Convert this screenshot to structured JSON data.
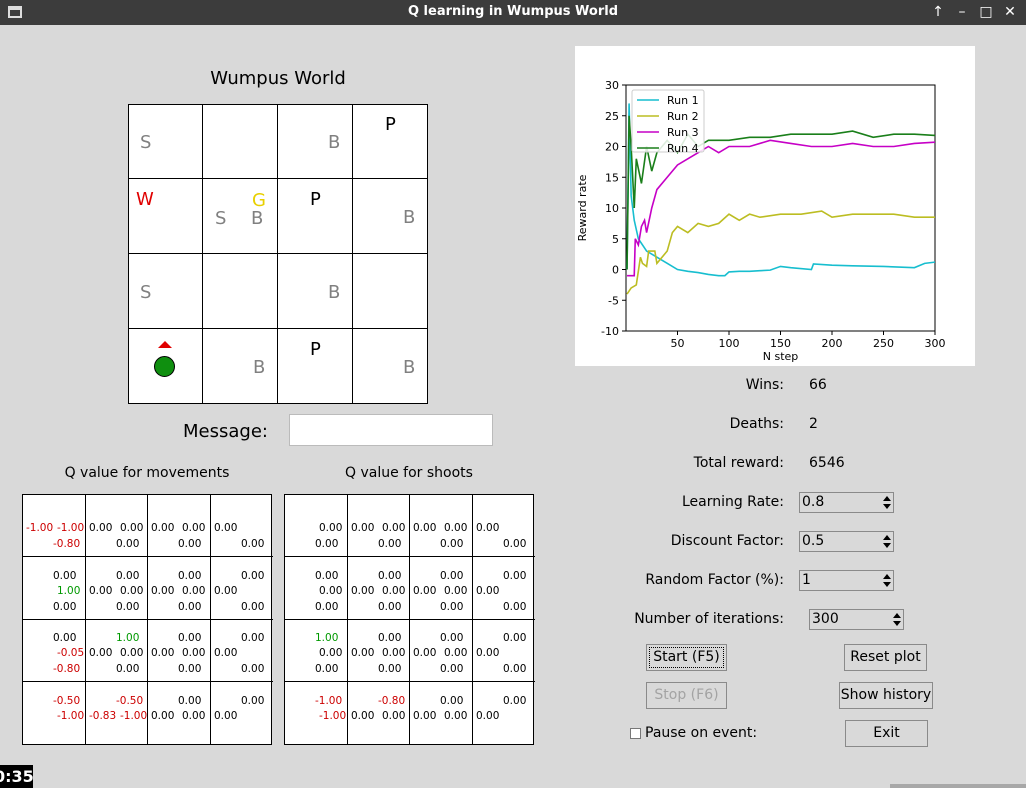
{
  "window": {
    "title": "Q learning in Wumpus World"
  },
  "world": {
    "title": "Wumpus World",
    "cells": [
      {
        "row": 0,
        "col": 0,
        "labels": [
          {
            "t": "S",
            "c": "gray",
            "p": "ml"
          }
        ]
      },
      {
        "row": 0,
        "col": 2,
        "labels": [
          {
            "t": "B",
            "c": "gray",
            "p": "mr"
          }
        ]
      },
      {
        "row": 0,
        "col": 3,
        "labels": [
          {
            "t": "P",
            "c": "black",
            "p": "tc"
          }
        ]
      },
      {
        "row": 1,
        "col": 0,
        "labels": [
          {
            "t": "W",
            "c": "red",
            "p": "tl"
          }
        ]
      },
      {
        "row": 1,
        "col": 1,
        "labels": [
          {
            "t": "G",
            "c": "gold",
            "p": "tr"
          },
          {
            "t": "S",
            "c": "gray",
            "p": "ml2"
          },
          {
            "t": "B",
            "c": "gray",
            "p": "mr"
          }
        ]
      },
      {
        "row": 1,
        "col": 2,
        "labels": [
          {
            "t": "P",
            "c": "black",
            "p": "tc"
          }
        ]
      },
      {
        "row": 1,
        "col": 3,
        "labels": [
          {
            "t": "B",
            "c": "gray",
            "p": "mr"
          }
        ]
      },
      {
        "row": 2,
        "col": 0,
        "labels": [
          {
            "t": "S",
            "c": "gray",
            "p": "ml"
          }
        ]
      },
      {
        "row": 2,
        "col": 2,
        "labels": [
          {
            "t": "B",
            "c": "gray",
            "p": "mr"
          }
        ]
      },
      {
        "row": 3,
        "col": 1,
        "labels": [
          {
            "t": "B",
            "c": "gray",
            "p": "mr"
          }
        ]
      },
      {
        "row": 3,
        "col": 2,
        "labels": [
          {
            "t": "P",
            "c": "black",
            "p": "tc"
          }
        ]
      },
      {
        "row": 3,
        "col": 3,
        "labels": [
          {
            "t": "B",
            "c": "gray",
            "p": "mr"
          }
        ]
      }
    ],
    "agent": {
      "row": 3,
      "col": 0,
      "facing": "up"
    }
  },
  "message": {
    "label": "Message:",
    "value": ""
  },
  "q_movements": {
    "title": "Q value for movements",
    "cells": [
      [
        {
          "u": "",
          "l": "-1.00",
          "r": "-1.00",
          "d": "-0.80"
        },
        {
          "u": "",
          "l": "0.00",
          "r": "0.00",
          "d": "0.00"
        },
        {
          "u": "",
          "l": "0.00",
          "r": "0.00",
          "d": "0.00"
        },
        {
          "u": "",
          "l": "0.00",
          "r": "",
          "d": "0.00"
        }
      ],
      [
        {
          "u": "0.00",
          "l": "",
          "r": "1.00",
          "d": "0.00"
        },
        {
          "u": "0.00",
          "l": "0.00",
          "r": "0.00",
          "d": "0.00"
        },
        {
          "u": "0.00",
          "l": "0.00",
          "r": "0.00",
          "d": "0.00"
        },
        {
          "u": "0.00",
          "l": "0.00",
          "r": "",
          "d": "0.00"
        }
      ],
      [
        {
          "u": "0.00",
          "l": "",
          "r": "-0.05",
          "d": "-0.80"
        },
        {
          "u": "1.00",
          "l": "0.00",
          "r": "0.00",
          "d": "0.00"
        },
        {
          "u": "0.00",
          "l": "0.00",
          "r": "0.00",
          "d": "0.00"
        },
        {
          "u": "0.00",
          "l": "0.00",
          "r": "",
          "d": "0.00"
        }
      ],
      [
        {
          "u": "-0.50",
          "l": "",
          "r": "-1.00",
          "d": ""
        },
        {
          "u": "-0.50",
          "l": "-0.83",
          "r": "-1.00",
          "d": ""
        },
        {
          "u": "0.00",
          "l": "0.00",
          "r": "0.00",
          "d": ""
        },
        {
          "u": "0.00",
          "l": "0.00",
          "r": "",
          "d": ""
        }
      ]
    ]
  },
  "q_shoots": {
    "title": "Q value for shoots",
    "cells": [
      [
        {
          "u": "",
          "l": "",
          "r": "0.00",
          "d": "0.00"
        },
        {
          "u": "",
          "l": "0.00",
          "r": "0.00",
          "d": "0.00"
        },
        {
          "u": "",
          "l": "0.00",
          "r": "0.00",
          "d": "0.00"
        },
        {
          "u": "",
          "l": "0.00",
          "r": "",
          "d": "0.00"
        }
      ],
      [
        {
          "u": "0.00",
          "l": "",
          "r": "0.00",
          "d": "0.00"
        },
        {
          "u": "0.00",
          "l": "0.00",
          "r": "0.00",
          "d": "0.00"
        },
        {
          "u": "0.00",
          "l": "0.00",
          "r": "0.00",
          "d": "0.00"
        },
        {
          "u": "0.00",
          "l": "0.00",
          "r": "",
          "d": "0.00"
        }
      ],
      [
        {
          "u": "1.00",
          "l": "",
          "r": "0.00",
          "d": "0.00"
        },
        {
          "u": "0.00",
          "l": "0.00",
          "r": "0.00",
          "d": "0.00"
        },
        {
          "u": "0.00",
          "l": "0.00",
          "r": "0.00",
          "d": "0.00"
        },
        {
          "u": "0.00",
          "l": "0.00",
          "r": "",
          "d": "0.00"
        }
      ],
      [
        {
          "u": "-1.00",
          "l": "",
          "r": "-1.00",
          "d": ""
        },
        {
          "u": "-0.80",
          "l": "0.00",
          "r": "0.00",
          "d": ""
        },
        {
          "u": "0.00",
          "l": "0.00",
          "r": "0.00",
          "d": ""
        },
        {
          "u": "0.00",
          "l": "0.00",
          "r": "",
          "d": ""
        }
      ]
    ]
  },
  "chart_data": {
    "type": "line",
    "title": "",
    "xlabel": "N step",
    "ylabel": "Reward rate",
    "xlim": [
      0,
      300
    ],
    "ylim": [
      -10,
      30
    ],
    "xticks": [
      50,
      100,
      150,
      200,
      250,
      300
    ],
    "yticks": [
      -10,
      -5,
      0,
      5,
      10,
      15,
      20,
      25,
      30
    ],
    "legend_position": "top-left",
    "series": [
      {
        "name": "Run 1",
        "color": "#17becf",
        "x": [
          1,
          3,
          5,
          8,
          12,
          20,
          30,
          40,
          50,
          60,
          70,
          80,
          90,
          96,
          100,
          110,
          120,
          130,
          140,
          150,
          160,
          180,
          182,
          200,
          220,
          250,
          280,
          290,
          300
        ],
        "y": [
          0,
          27,
          12,
          8,
          5,
          3,
          2,
          1,
          0,
          -0.3,
          -0.5,
          -0.8,
          -1,
          -1,
          -0.4,
          -0.3,
          -0.3,
          -0.2,
          -0.1,
          0.5,
          0.3,
          0,
          0.9,
          0.7,
          0.6,
          0.5,
          0.3,
          1,
          1.2
        ]
      },
      {
        "name": "Run 2",
        "color": "#bcbd22",
        "x": [
          1,
          5,
          10,
          14,
          16,
          20,
          22,
          28,
          30,
          40,
          45,
          50,
          60,
          70,
          80,
          90,
          100,
          110,
          120,
          130,
          150,
          170,
          190,
          200,
          220,
          240,
          260,
          280,
          300
        ],
        "y": [
          -4,
          -3,
          -2.5,
          2,
          1,
          0.5,
          3,
          3,
          1,
          3,
          6,
          7,
          6,
          7.5,
          7,
          7.5,
          9,
          8,
          9,
          8.5,
          9,
          9,
          9.5,
          8.5,
          9,
          9,
          9,
          8.5,
          8.5
        ]
      },
      {
        "name": "Run 3",
        "color": "#c600c6",
        "x": [
          1,
          8,
          9,
          12,
          15,
          18,
          20,
          25,
          30,
          40,
          50,
          60,
          70,
          80,
          90,
          100,
          120,
          140,
          160,
          180,
          200,
          220,
          240,
          260,
          280,
          300
        ],
        "y": [
          -1,
          -1,
          5,
          4,
          7,
          8,
          6,
          10,
          13,
          15,
          17,
          18,
          19,
          20,
          19,
          20,
          20,
          21,
          20.5,
          20,
          20,
          20.5,
          20,
          20,
          20.5,
          20.7
        ]
      },
      {
        "name": "Run 4",
        "color": "#1a7f1a",
        "x": [
          1,
          3,
          5,
          8,
          10,
          15,
          20,
          25,
          30,
          40,
          50,
          60,
          70,
          80,
          90,
          100,
          120,
          140,
          160,
          180,
          200,
          220,
          240,
          260,
          280,
          300
        ],
        "y": [
          0,
          25,
          20,
          10,
          18,
          14,
          20,
          16,
          19,
          21,
          19,
          22,
          20,
          21,
          21,
          21,
          21.5,
          21.5,
          22,
          22,
          22,
          22.5,
          21.5,
          22,
          22,
          21.8
        ]
      }
    ]
  },
  "stats": {
    "wins_label": "Wins:",
    "wins": "66",
    "deaths_label": "Deaths:",
    "deaths": "2",
    "reward_label": "Total reward:",
    "reward": "6546"
  },
  "params": {
    "lr_label": "Learning Rate:",
    "lr": "0.8",
    "df_label": "Discount Factor:",
    "df": "0.5",
    "rf_label": "Random Factor (%):",
    "rf": "1",
    "iter_label": "Number of iterations:",
    "iter": "300"
  },
  "buttons": {
    "start": "Start (F5)",
    "stop": "Stop (F6)",
    "reset": "Reset plot",
    "history": "Show history",
    "exit": "Exit"
  },
  "pause": {
    "label": "Pause on event:",
    "checked": false
  },
  "clock": "0:35"
}
